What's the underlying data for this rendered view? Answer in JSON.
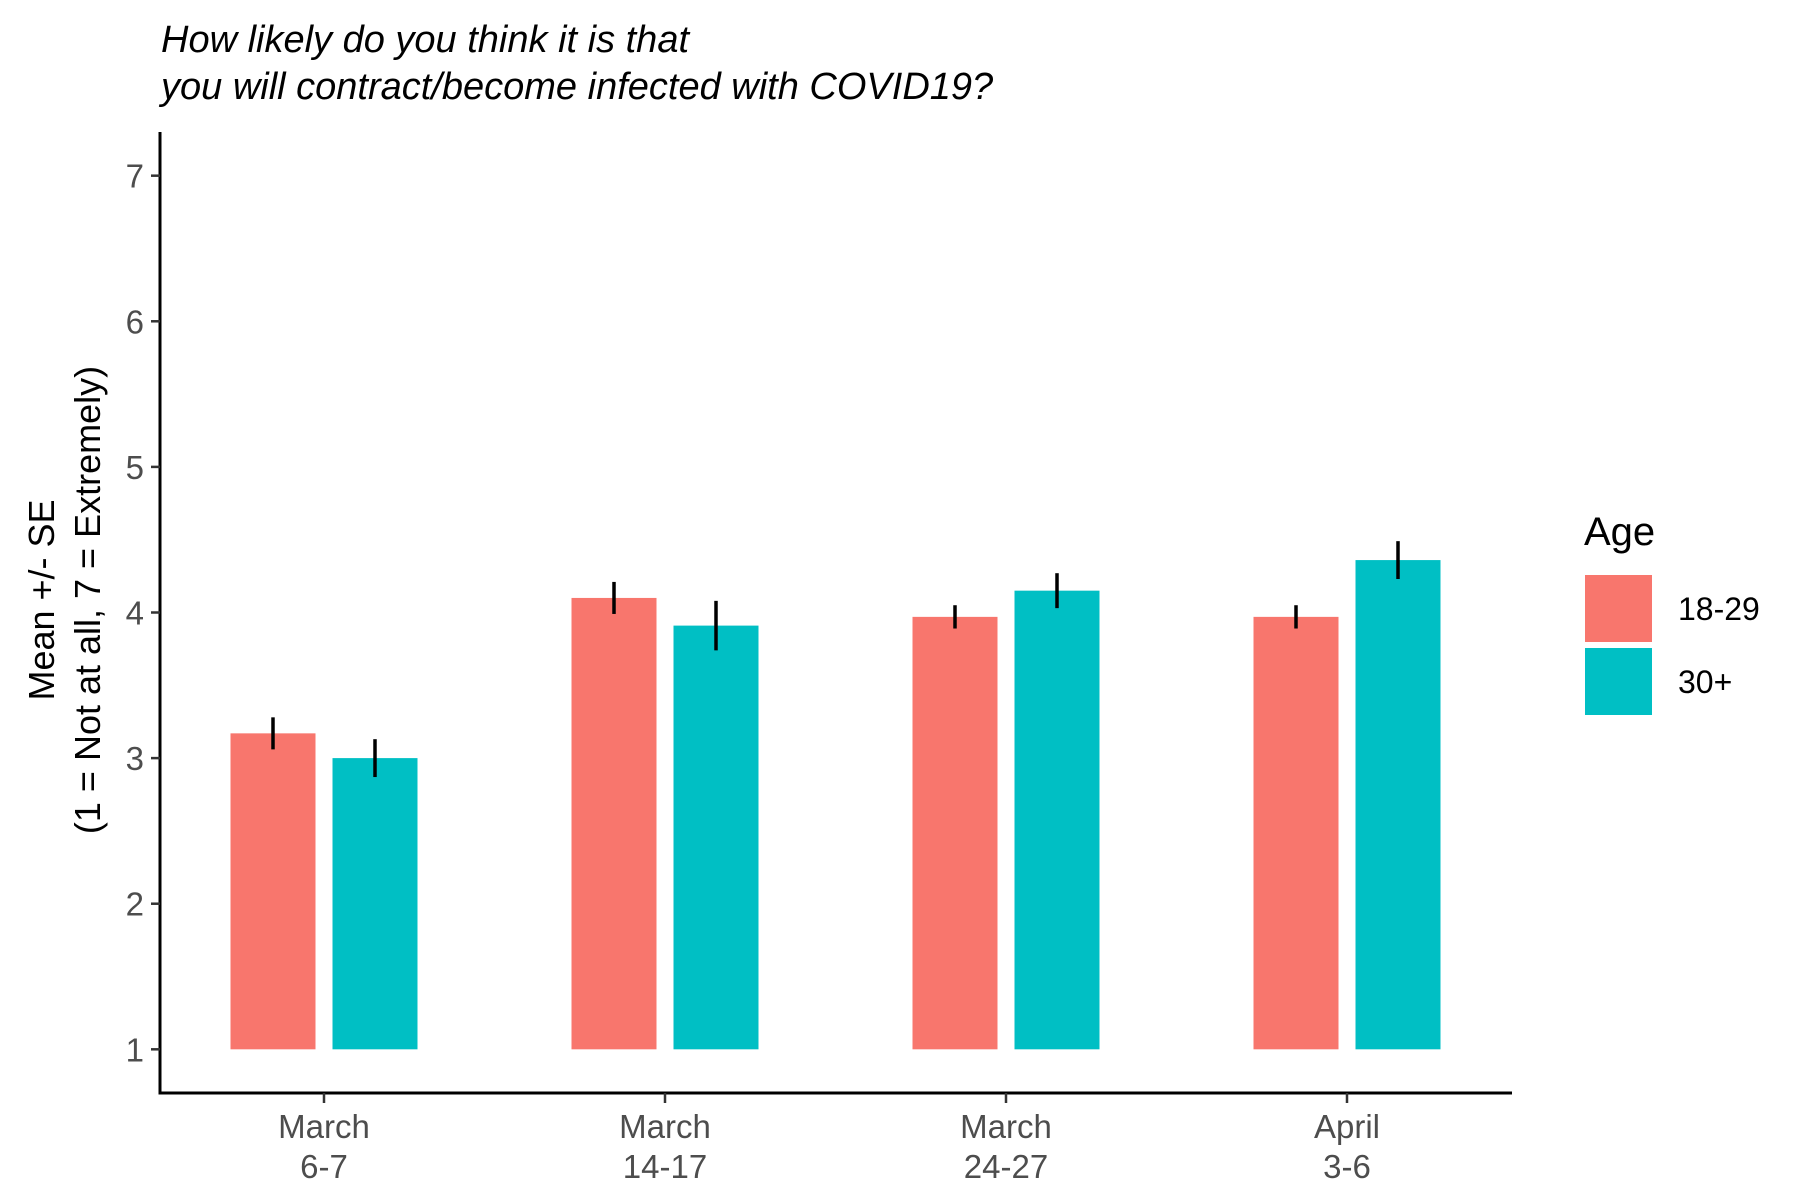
{
  "chart_data": {
    "type": "bar",
    "title_lines": [
      "How likely do you think it is that",
      "you will contract/become infected with COVID19?"
    ],
    "ylabel_lines": [
      "Mean +/- SE",
      "(1 = Not at all, 7 = Extremely)"
    ],
    "xlabel": "",
    "categories": [
      {
        "lines": [
          "March",
          "6-7"
        ]
      },
      {
        "lines": [
          "March",
          "14-17"
        ]
      },
      {
        "lines": [
          "March",
          "24-27"
        ]
      },
      {
        "lines": [
          "April",
          "3-6"
        ]
      }
    ],
    "y_ticks": [
      1,
      2,
      3,
      4,
      5,
      6,
      7
    ],
    "y_tick_labels": [
      "1",
      "2",
      "3",
      "4",
      "5",
      "6",
      "7"
    ],
    "ylim": [
      0.7,
      7.3
    ],
    "bar_base": 1,
    "legend_title": "Age",
    "legend_position": "right",
    "grid": false,
    "series": [
      {
        "name": "18-29",
        "color": "#F8766D",
        "values": [
          3.17,
          4.1,
          3.97,
          3.97
        ],
        "se": [
          0.11,
          0.11,
          0.08,
          0.08
        ]
      },
      {
        "name": "30+",
        "color": "#00BFC4",
        "values": [
          3.0,
          3.91,
          4.15,
          4.36
        ],
        "se": [
          0.13,
          0.17,
          0.12,
          0.13
        ]
      }
    ]
  }
}
